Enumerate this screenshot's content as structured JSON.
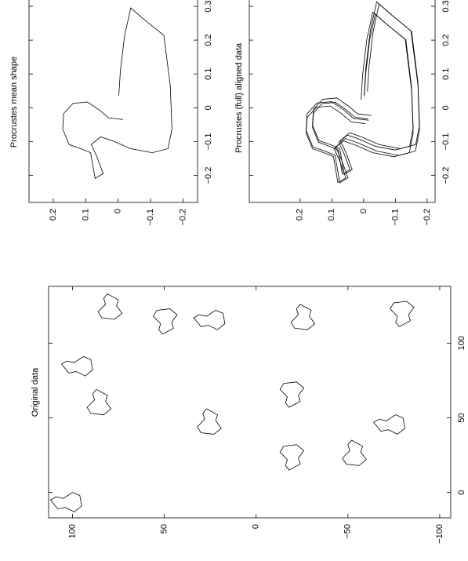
{
  "chart_data": [
    {
      "type": "line",
      "title": "Procrustes mean shape",
      "xlim": [
        -0.28,
        0.365
      ],
      "ylim": [
        -0.245,
        0.275
      ],
      "xticks": [
        {
          "value": -0.2,
          "label": "−0.2"
        },
        {
          "value": -0.1,
          "label": "−0.1"
        },
        0,
        0.1,
        0.2,
        0.3
      ],
      "yticks": [
        {
          "value": -0.2,
          "label": "−0.2"
        },
        {
          "value": -0.1,
          "label": "−0.1"
        },
        0,
        0.1,
        0.2
      ],
      "series": [
        {
          "x": [
            0.036,
            0.11,
            0.214,
            0.295,
            0.261,
            0.214,
            0.064,
            -0.063,
            -0.121,
            -0.133,
            -0.121,
            -0.098,
            -0.086,
            -0.109,
            -0.144,
            -0.195,
            -0.209,
            -0.133,
            -0.121,
            -0.109,
            -0.063,
            -0.017,
            0.013,
            0.017,
            -0.006,
            -0.03,
            -0.035
          ],
          "y": [
            -0.002,
            -0.007,
            -0.02,
            -0.039,
            -0.08,
            -0.141,
            -0.161,
            -0.166,
            -0.154,
            -0.105,
            -0.039,
            0.017,
            0.054,
            0.083,
            0.066,
            0.046,
            0.071,
            0.085,
            0.115,
            0.151,
            0.171,
            0.168,
            0.139,
            0.095,
            0.059,
            0.029,
            -0.015
          ]
        }
      ]
    },
    {
      "type": "line",
      "title": "Procrustes (full) aligned data",
      "xlim": [
        -0.28,
        0.365
      ],
      "ylim": [
        -0.225,
        0.36
      ],
      "xticks": [
        {
          "value": -0.2,
          "label": "−0.2"
        },
        {
          "value": -0.1,
          "label": "−0.1"
        },
        0,
        0.1,
        0.2,
        0.3
      ],
      "yticks": [
        {
          "value": -0.2,
          "label": "−0.2"
        },
        {
          "value": -0.1,
          "label": "−0.1"
        },
        0,
        0.1,
        0.2
      ],
      "series": [
        {
          "x": [
            0.038,
            0.117,
            0.227,
            0.313,
            0.277,
            0.227,
            0.068,
            -0.067,
            -0.128,
            -0.141,
            -0.128,
            -0.104,
            -0.091,
            -0.116,
            -0.153,
            -0.207,
            -0.222,
            -0.141,
            -0.128,
            -0.116,
            -0.067,
            -0.018,
            0.014,
            0.018,
            -0.006,
            -0.032,
            -0.037
          ],
          "y": [
            -0.002,
            -0.007,
            -0.021,
            -0.041,
            -0.085,
            -0.149,
            -0.171,
            -0.176,
            -0.163,
            -0.111,
            -0.041,
            0.018,
            0.057,
            0.088,
            0.07,
            0.049,
            0.075,
            0.09,
            0.122,
            0.16,
            0.181,
            0.178,
            0.147,
            0.101,
            0.063,
            0.031,
            -0.016
          ]
        },
        {
          "x": [
            0.034,
            0.103,
            0.201,
            0.277,
            0.245,
            0.201,
            0.06,
            -0.059,
            -0.114,
            -0.125,
            -0.114,
            -0.092,
            -0.081,
            -0.102,
            -0.135,
            -0.183,
            -0.196,
            -0.125,
            -0.114,
            -0.102,
            -0.059,
            -0.016,
            0.012,
            0.016,
            -0.006,
            -0.028,
            -0.033
          ],
          "y": [
            -0.002,
            -0.007,
            -0.019,
            -0.037,
            -0.075,
            -0.133,
            -0.151,
            -0.156,
            -0.145,
            -0.099,
            -0.037,
            0.016,
            0.051,
            0.078,
            0.062,
            0.043,
            0.067,
            0.08,
            0.108,
            0.142,
            0.161,
            0.158,
            0.131,
            0.089,
            0.055,
            0.027,
            -0.014
          ]
        },
        {
          "x": [
            0.048,
            0.122,
            0.226,
            0.307,
            0.273,
            0.226,
            0.076,
            -0.051,
            -0.109,
            -0.121,
            -0.109,
            -0.086,
            -0.074,
            -0.097,
            -0.132,
            -0.183,
            -0.197,
            -0.121,
            -0.109,
            -0.097,
            -0.051,
            -0.005,
            0.025,
            0.029,
            0.006,
            -0.018,
            -0.023
          ],
          "y": [
            -0.012,
            -0.017,
            -0.03,
            -0.049,
            -0.09,
            -0.151,
            -0.171,
            -0.176,
            -0.164,
            -0.115,
            -0.049,
            0.007,
            0.044,
            0.073,
            0.056,
            0.036,
            0.061,
            0.075,
            0.105,
            0.141,
            0.161,
            0.158,
            0.129,
            0.085,
            0.049,
            0.019,
            -0.025
          ]
        },
        {
          "x": [
            0.024,
            0.098,
            0.202,
            0.283,
            0.249,
            0.202,
            0.052,
            -0.075,
            -0.133,
            -0.145,
            -0.133,
            -0.11,
            -0.098,
            -0.121,
            -0.156,
            -0.207,
            -0.221,
            -0.145,
            -0.133,
            -0.121,
            -0.075,
            -0.029,
            0.001,
            0.005,
            -0.018,
            -0.042,
            -0.047
          ],
          "y": [
            0.008,
            0.003,
            -0.01,
            -0.029,
            -0.07,
            -0.131,
            -0.151,
            -0.156,
            -0.144,
            -0.095,
            -0.029,
            0.027,
            0.064,
            0.093,
            0.076,
            0.056,
            0.081,
            0.095,
            0.125,
            0.161,
            0.181,
            0.178,
            0.149,
            0.105,
            0.069,
            0.039,
            -0.005
          ]
        }
      ]
    },
    {
      "type": "polygon",
      "title": "Original data",
      "xlim": [
        -17,
        138
      ],
      "ylim": [
        -106,
        113
      ],
      "xticks": [
        0,
        50,
        100
      ],
      "yticks": [
        {
          "value": -100,
          "label": "−100"
        },
        {
          "value": -50,
          "label": "−50"
        },
        0,
        50,
        100
      ],
      "series": [
        {
          "x": [
            131,
            133,
            130,
            126,
            121,
            117,
            116,
            120,
            125,
            129
          ],
          "y": [
            78,
            81,
            83,
            82,
            86,
            84,
            77,
            73,
            76,
            75
          ]
        },
        {
          "x": [
            108,
            106,
            109,
            113,
            118,
            122,
            123,
            119,
            114,
            110
          ],
          "y": [
            48,
            51,
            53,
            52,
            56,
            54,
            47,
            43,
            46,
            45
          ]
        },
        {
          "x": [
            114,
            117,
            119,
            118,
            122,
            120,
            113,
            109,
            112,
            111
          ],
          "y": [
            32,
            34,
            31,
            27,
            22,
            18,
            17,
            21,
            26,
            30
          ]
        },
        {
          "x": [
            124,
            126,
            123,
            119,
            114,
            110,
            109,
            113,
            118,
            122
          ],
          "y": [
            -27,
            -24,
            -22,
            -23,
            -19,
            -21,
            -28,
            -32,
            -29,
            -30
          ]
        },
        {
          "x": [
            113,
            111,
            114,
            118,
            123,
            127,
            128,
            124,
            119,
            115
          ],
          "y": [
            -81,
            -78,
            -76,
            -77,
            -73,
            -75,
            -82,
            -86,
            -83,
            -84
          ]
        },
        {
          "x": [
            83,
            86,
            88,
            87,
            91,
            89,
            82,
            78,
            81,
            80
          ],
          "y": [
            104,
            106,
            103,
            99,
            94,
            90,
            89,
            93,
            98,
            102
          ]
        },
        {
          "x": [
            54,
            56,
            53,
            49,
            44,
            40,
            39,
            43,
            48,
            52
          ],
          "y": [
            24,
            27,
            29,
            28,
            32,
            30,
            23,
            19,
            22,
            21
          ]
        },
        {
          "x": [
            59,
            57,
            60,
            64,
            69,
            73,
            74,
            70,
            65,
            61
          ],
          "y": [
            -21,
            -18,
            -16,
            -17,
            -13,
            -15,
            -22,
            -26,
            -23,
            -24
          ]
        },
        {
          "x": [
            67,
            69,
            66,
            62,
            57,
            53,
            52,
            56,
            61,
            65
          ],
          "y": [
            84,
            87,
            89,
            88,
            92,
            90,
            83,
            79,
            82,
            81
          ]
        },
        {
          "x": [
            44,
            47,
            49,
            48,
            52,
            50,
            43,
            39,
            42,
            41
          ],
          "y": [
            -66,
            -64,
            -67,
            -71,
            -76,
            -80,
            -81,
            -77,
            -72,
            -68
          ]
        },
        {
          "x": [
            17,
            15,
            18,
            22,
            27,
            31,
            32,
            28,
            23,
            19
          ],
          "y": [
            -21,
            -18,
            -16,
            -17,
            -13,
            -15,
            -22,
            -26,
            -23,
            -24
          ]
        },
        {
          "x": [
            33,
            35,
            32,
            28,
            23,
            19,
            18,
            22,
            27,
            31
          ],
          "y": [
            -55,
            -52,
            -50,
            -51,
            -47,
            -49,
            -56,
            -60,
            -57,
            -58
          ]
        },
        {
          "x": [
            -8,
            -5,
            -3,
            -4,
            0,
            -2,
            -9,
            -13,
            -10,
            -11
          ],
          "y": [
            110,
            112,
            109,
            105,
            100,
            96,
            95,
            99,
            104,
            108
          ]
        }
      ]
    }
  ]
}
